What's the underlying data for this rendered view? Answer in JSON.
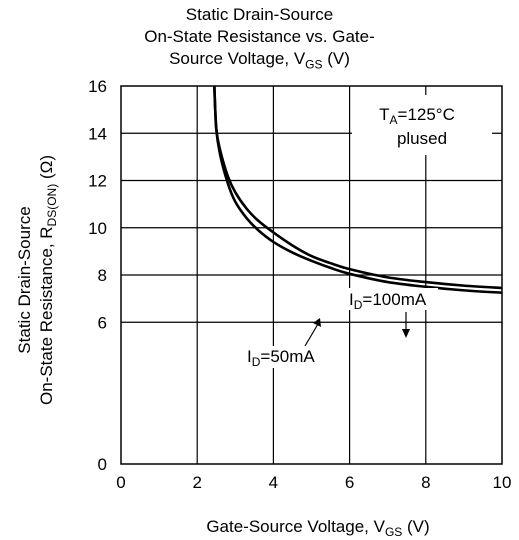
{
  "chart_data": {
    "type": "line",
    "title_lines": [
      "Static Drain-Source",
      "On-State Resistance vs. Gate-",
      "Source Voltage, V"
    ],
    "title_sub": "GS",
    "title_tail": " (V)",
    "xlabel_main": "Gate-Source Voltage, V",
    "xlabel_sub": "GS",
    "xlabel_tail": " (V)",
    "ylabel_line1": "Static Drain-Source",
    "ylabel_line2_main": "On-State Resistance,  R",
    "ylabel_line2_sub": "DS(ON)",
    "ylabel_line2_tail": " (Ω)",
    "xlim": [
      0,
      10
    ],
    "ylim": [
      0,
      16
    ],
    "x_ticks": [
      "0",
      "2",
      "4",
      "6",
      "8",
      "10"
    ],
    "y_ticks": [
      "0",
      "6",
      "8",
      "10",
      "12",
      "14",
      "16"
    ],
    "grid": true,
    "annotation": {
      "line1_main": "T",
      "line1_sub": "A",
      "line1_tail": "=125°C",
      "line2": "plused"
    },
    "series": [
      {
        "name": "ID=100mA",
        "label_main": "I",
        "label_sub": "D",
        "label_tail": "=100mA",
        "x": [
          2.45,
          2.5,
          2.6,
          2.8,
          3.0,
          3.3,
          3.6,
          4.0,
          4.5,
          5.0,
          5.5,
          6.0,
          7.0,
          8.0,
          9.0,
          10.0
        ],
        "y": [
          16.0,
          14.2,
          13.3,
          12.2,
          11.5,
          10.8,
          10.3,
          9.8,
          9.25,
          8.8,
          8.5,
          8.25,
          7.9,
          7.7,
          7.55,
          7.45
        ]
      },
      {
        "name": "ID=50mA",
        "label_main": "I",
        "label_sub": "D",
        "label_tail": "=50mA",
        "x": [
          2.45,
          2.5,
          2.6,
          2.8,
          3.0,
          3.3,
          3.6,
          4.0,
          4.5,
          5.0,
          5.5,
          6.0,
          7.0,
          8.0,
          9.0,
          10.0
        ],
        "y": [
          16.0,
          14.2,
          13.1,
          11.9,
          11.1,
          10.4,
          9.9,
          9.4,
          8.95,
          8.6,
          8.3,
          8.05,
          7.7,
          7.5,
          7.35,
          7.25
        ]
      }
    ]
  }
}
